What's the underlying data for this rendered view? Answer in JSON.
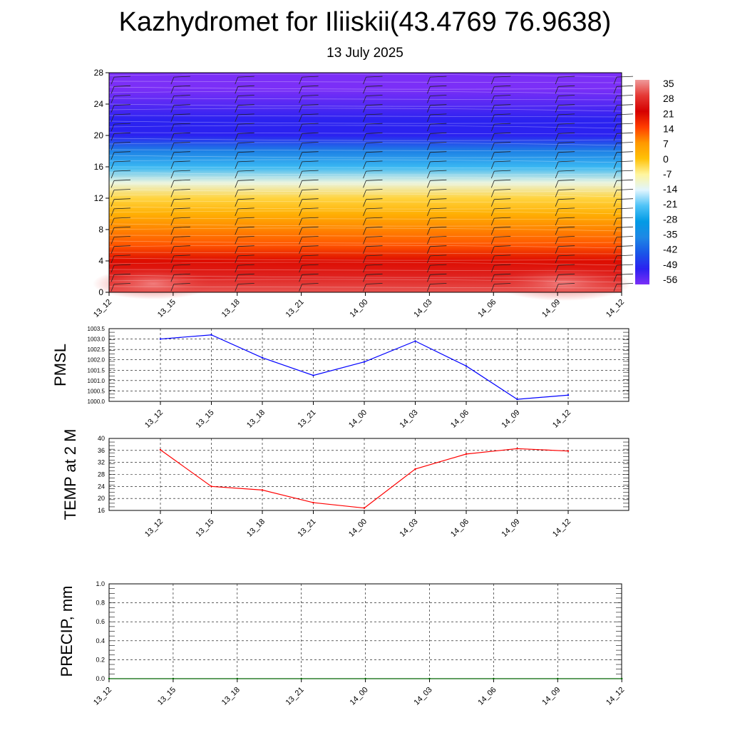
{
  "header": {
    "title": "Kazhydromet for Iliiskii(43.4769 76.9638)",
    "subtitle": "13 July 2025"
  },
  "colorbar": {
    "labels": [
      "35",
      "28",
      "21",
      "14",
      "7",
      "0",
      "-7",
      "-14",
      "-21",
      "-28",
      "-35",
      "-42",
      "-49",
      "-56"
    ],
    "colors": [
      "#ef9a9a",
      "#e53935",
      "#d50000",
      "#ff3d00",
      "#ff9800",
      "#ffc107",
      "#fff59d",
      "#e1f5fe",
      "#4fc3f7",
      "#039be5",
      "#1e88e5",
      "#1a56e8",
      "#2b22f0",
      "#7b2ff7"
    ]
  },
  "chart_data": [
    {
      "type": "heatmap",
      "name": "",
      "x_tick_labels": [
        "13_12",
        "13_15",
        "13_18",
        "13_21",
        "14_00",
        "14_03",
        "14_06",
        "14_09",
        "14_12"
      ],
      "y_tick_labels": [
        "0",
        "4",
        "8",
        "12",
        "16",
        "20",
        "24",
        "28"
      ],
      "ylim": [
        0,
        28
      ],
      "zlim": [
        -56,
        35
      ],
      "profile_levels": [
        0,
        2,
        4,
        6,
        8,
        10,
        12,
        14,
        16,
        18,
        20,
        22,
        24,
        26,
        28
      ],
      "profile_values": [
        33,
        28,
        22,
        14,
        10,
        4,
        -2,
        -12,
        -24,
        -38,
        -52,
        -52,
        -56,
        -60,
        -62
      ]
    },
    {
      "type": "line",
      "ylabel": "PMSL",
      "ylim": [
        1000.0,
        1003.5
      ],
      "y_tick_labels": [
        "1000.0",
        "1000.5",
        "1001.0",
        "1001.5",
        "1002.0",
        "1002.5",
        "1003.0",
        "1003.5"
      ],
      "x_tick_labels": [
        "13_12",
        "13_15",
        "13_18",
        "13_21",
        "14_00",
        "14_03",
        "14_06",
        "14_09",
        "14_12"
      ],
      "color": "#0000ff",
      "values": [
        1003.0,
        1003.2,
        1002.1,
        1001.25,
        1001.9,
        1002.9,
        1001.7,
        1000.1,
        1000.3
      ]
    },
    {
      "type": "line",
      "ylabel": "TEMP at 2 M",
      "ylim": [
        16,
        40
      ],
      "y_tick_labels": [
        "16",
        "20",
        "24",
        "28",
        "32",
        "36",
        "40"
      ],
      "x_tick_labels": [
        "13_12",
        "13_15",
        "13_18",
        "13_21",
        "14_00",
        "14_03",
        "14_06",
        "14_09",
        "14_12"
      ],
      "color": "#ff0000",
      "values": [
        36.2,
        24.0,
        22.8,
        18.6,
        16.8,
        29.8,
        34.8,
        36.6,
        35.8
      ]
    },
    {
      "type": "line",
      "ylabel": "PRECIP, mm",
      "ylim": [
        0,
        1
      ],
      "y_tick_labels": [
        "0.0",
        "0.2",
        "0.4",
        "0.6",
        "0.8",
        "1.0"
      ],
      "x_tick_labels": [
        "13_12",
        "13_15",
        "13_18",
        "13_21",
        "14_00",
        "14_03",
        "14_06",
        "14_09",
        "14_12"
      ],
      "color": "#006400",
      "values": [
        0,
        0,
        0,
        0,
        0,
        0,
        0,
        0,
        0
      ]
    }
  ]
}
